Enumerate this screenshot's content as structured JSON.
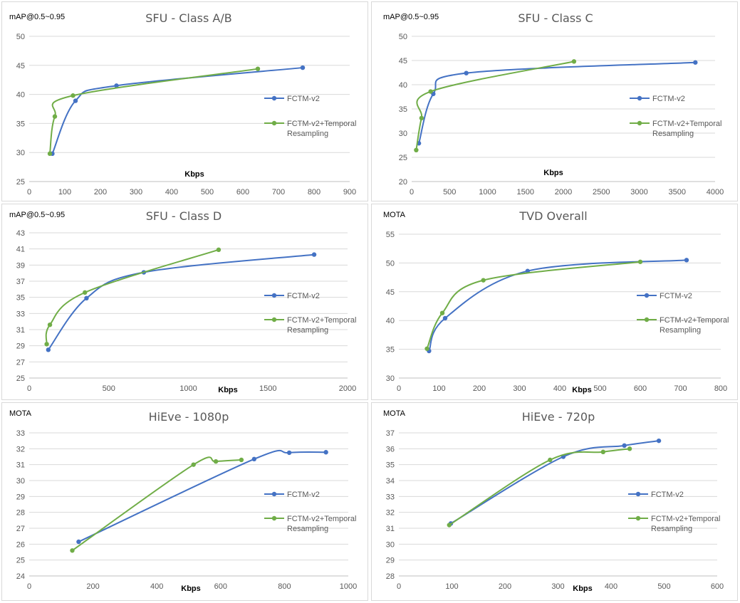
{
  "colors": {
    "fctm": "#4472C4",
    "fctm_tr": "#70AD47"
  },
  "chart_data": [
    {
      "type": "line",
      "title": "SFU - Class A/B",
      "ylabel": "mAP@0.5~0.95",
      "xlabel": "Kbps",
      "xlim": [
        0,
        900
      ],
      "ylim": [
        25,
        50
      ],
      "xticks": [
        0,
        100,
        200,
        300,
        400,
        500,
        600,
        700,
        800,
        900
      ],
      "yticks": [
        25,
        30,
        35,
        40,
        45,
        50
      ],
      "legend_position": "right",
      "series": [
        {
          "name": "FCTM-v2",
          "x": [
            65,
            130,
            245,
            768
          ],
          "y": [
            29.8,
            38.9,
            41.5,
            44.6
          ]
        },
        {
          "name": "FCTM-v2+Temporal Resampling",
          "x": [
            58,
            72,
            123,
            642
          ],
          "y": [
            29.8,
            36.2,
            39.8,
            44.4
          ]
        }
      ]
    },
    {
      "type": "line",
      "title": "SFU - Class C",
      "ylabel": "mAP@0.5~0.95",
      "xlabel": "Kbps",
      "xlim": [
        0,
        4000
      ],
      "ylim": [
        20,
        50
      ],
      "xticks": [
        0,
        500,
        1000,
        1500,
        2000,
        2500,
        3000,
        3500,
        4000
      ],
      "yticks": [
        20,
        25,
        30,
        35,
        40,
        45,
        50
      ],
      "legend_position": "right",
      "series": [
        {
          "name": "FCTM-v2",
          "x": [
            95,
            285,
            720,
            3740
          ],
          "y": [
            27.9,
            38.1,
            42.4,
            44.6
          ]
        },
        {
          "name": "FCTM-v2+Temporal Resampling",
          "x": [
            60,
            130,
            250,
            2140
          ],
          "y": [
            26.5,
            33.1,
            38.6,
            44.8
          ]
        }
      ]
    },
    {
      "type": "line",
      "title": "SFU - Class D",
      "ylabel": "mAP@0.5~0.95",
      "xlabel": "Kbps",
      "xlim": [
        0,
        2000
      ],
      "ylim": [
        25,
        43
      ],
      "xticks": [
        0,
        500,
        1000,
        1500,
        2000
      ],
      "yticks": [
        25,
        27,
        29,
        31,
        33,
        35,
        37,
        39,
        41,
        43
      ],
      "legend_position": "right",
      "series": [
        {
          "name": "FCTM-v2",
          "x": [
            120,
            360,
            720,
            1790
          ],
          "y": [
            28.5,
            34.9,
            38.1,
            40.3
          ]
        },
        {
          "name": "FCTM-v2+Temporal Resampling",
          "x": [
            110,
            130,
            350,
            1190
          ],
          "y": [
            29.2,
            31.6,
            35.6,
            40.9
          ]
        }
      ]
    },
    {
      "type": "line",
      "title": "TVD Overall",
      "ylabel": "MOTA",
      "xlabel": "Kbps",
      "xlim": [
        0,
        800
      ],
      "ylim": [
        30,
        55
      ],
      "xticks": [
        0,
        100,
        200,
        300,
        400,
        500,
        600,
        700,
        800
      ],
      "yticks": [
        30,
        35,
        40,
        45,
        50,
        55
      ],
      "legend_position": "right",
      "series": [
        {
          "name": "FCTM-v2",
          "x": [
            75,
            115,
            320,
            715
          ],
          "y": [
            34.7,
            40.4,
            48.6,
            50.5
          ]
        },
        {
          "name": "FCTM-v2+Temporal Resampling",
          "x": [
            70,
            108,
            210,
            600
          ],
          "y": [
            35.1,
            41.3,
            47.0,
            50.2
          ]
        }
      ]
    },
    {
      "type": "line",
      "title": "HiEve - 1080p",
      "ylabel": "MOTA",
      "xlabel": "Kbps",
      "xlim": [
        0,
        1000
      ],
      "ylim": [
        24,
        33
      ],
      "xticks": [
        0,
        200,
        400,
        600,
        800,
        1000
      ],
      "yticks": [
        24,
        25,
        26,
        27,
        28,
        29,
        30,
        31,
        32,
        33
      ],
      "legend_position": "right",
      "series": [
        {
          "name": "FCTM-v2",
          "x": [
            155,
            705,
            815,
            930
          ],
          "y": [
            26.15,
            31.35,
            31.75,
            31.78
          ]
        },
        {
          "name": "FCTM-v2+Temporal Resampling",
          "x": [
            135,
            515,
            585,
            665
          ],
          "y": [
            25.6,
            31.0,
            31.2,
            31.3
          ]
        }
      ]
    },
    {
      "type": "line",
      "title": "HiEve - 720p",
      "ylabel": "MOTA",
      "xlabel": "Kbps",
      "xlim": [
        0,
        600
      ],
      "ylim": [
        28,
        37
      ],
      "xticks": [
        0,
        100,
        200,
        300,
        400,
        500,
        600
      ],
      "yticks": [
        28,
        29,
        30,
        31,
        32,
        33,
        34,
        35,
        36,
        37
      ],
      "legend_position": "right",
      "series": [
        {
          "name": "FCTM-v2",
          "x": [
            98,
            310,
            425,
            490
          ],
          "y": [
            31.3,
            35.5,
            36.2,
            36.5
          ]
        },
        {
          "name": "FCTM-v2+Temporal Resampling",
          "x": [
            95,
            285,
            385,
            435
          ],
          "y": [
            31.2,
            35.3,
            35.8,
            36.0
          ]
        }
      ]
    }
  ]
}
